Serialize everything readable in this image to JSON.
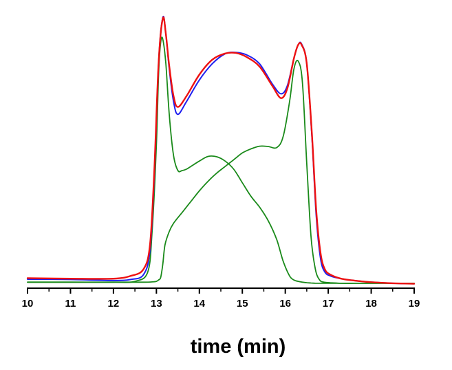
{
  "chart_data": {
    "type": "line",
    "title": "",
    "xlabel": "time (min)",
    "ylabel": "",
    "xlim": [
      10,
      19
    ],
    "ylim": [
      0,
      1
    ],
    "x_ticks": [
      "10",
      "11",
      "12",
      "13",
      "14",
      "15",
      "16",
      "17",
      "18",
      "19"
    ],
    "grid": false,
    "legend": "none",
    "y_axis_visible": false,
    "series": [
      {
        "color": "#1f1ff0",
        "x": [
          10.0,
          11.0,
          12.0,
          12.4,
          12.7,
          12.85,
          12.95,
          13.05,
          13.15,
          13.22,
          13.3,
          13.4,
          13.5,
          13.7,
          14.0,
          14.3,
          14.6,
          14.85,
          15.1,
          15.4,
          15.7,
          15.9,
          16.05,
          16.2,
          16.3,
          16.38,
          16.5,
          16.62,
          16.72,
          16.82,
          16.92,
          17.05,
          17.3,
          17.6,
          18.0,
          18.5,
          19.0
        ],
        "y": [
          0.023,
          0.022,
          0.018,
          0.022,
          0.04,
          0.13,
          0.4,
          0.82,
          0.991,
          0.93,
          0.8,
          0.68,
          0.633,
          0.68,
          0.76,
          0.82,
          0.857,
          0.862,
          0.853,
          0.82,
          0.745,
          0.709,
          0.74,
          0.84,
          0.89,
          0.893,
          0.82,
          0.55,
          0.26,
          0.1,
          0.05,
          0.035,
          0.025,
          0.018,
          0.012,
          0.008,
          0.006
        ]
      },
      {
        "color": "#ee1111",
        "x": [
          10.0,
          11.0,
          12.0,
          12.4,
          12.7,
          12.85,
          12.95,
          13.05,
          13.15,
          13.22,
          13.3,
          13.4,
          13.5,
          13.7,
          14.0,
          14.3,
          14.6,
          14.85,
          15.1,
          15.4,
          15.7,
          15.9,
          16.05,
          16.2,
          16.3,
          16.38,
          16.5,
          16.62,
          16.72,
          16.82,
          16.92,
          17.05,
          17.3,
          17.6,
          18.0,
          18.5,
          19.0
        ],
        "y": [
          0.027,
          0.025,
          0.025,
          0.035,
          0.06,
          0.15,
          0.42,
          0.82,
          0.988,
          0.93,
          0.81,
          0.7,
          0.66,
          0.7,
          0.78,
          0.835,
          0.858,
          0.86,
          0.845,
          0.81,
          0.738,
          0.693,
          0.73,
          0.84,
          0.89,
          0.89,
          0.82,
          0.56,
          0.28,
          0.12,
          0.06,
          0.04,
          0.025,
          0.018,
          0.012,
          0.008,
          0.006
        ]
      },
      {
        "color": "#1a8a1a",
        "x": [
          10.0,
          11.0,
          12.0,
          12.5,
          12.8,
          12.9,
          13.0,
          13.05,
          13.1,
          13.15,
          13.22,
          13.3,
          13.4,
          13.5,
          13.6,
          13.7,
          13.8,
          14.0,
          14.2,
          14.4,
          14.6,
          14.8,
          15.0,
          15.2,
          15.4,
          15.6,
          15.8,
          15.95,
          16.1,
          16.2,
          16.3,
          16.4,
          16.5,
          16.6,
          16.7,
          16.8,
          16.9,
          17.05,
          17.3,
          17.6,
          18.0,
          18.5,
          19.0
        ],
        "y": [
          0.012,
          0.012,
          0.012,
          0.015,
          0.05,
          0.2,
          0.52,
          0.78,
          0.9,
          0.91,
          0.82,
          0.63,
          0.48,
          0.425,
          0.425,
          0.43,
          0.44,
          0.46,
          0.477,
          0.476,
          0.46,
          0.43,
          0.38,
          0.33,
          0.29,
          0.24,
          0.17,
          0.09,
          0.035,
          0.02,
          0.015,
          0.012,
          0.01,
          0.009,
          0.008,
          0.008,
          0.008,
          0.008,
          0.008,
          0.008,
          0.008,
          0.008,
          0.008
        ]
      },
      {
        "color": "#1a8a1a",
        "x": [
          10.0,
          11.0,
          12.0,
          12.7,
          12.9,
          13.0,
          13.05,
          13.1,
          13.15,
          13.2,
          13.3,
          13.4,
          13.6,
          13.8,
          14.0,
          14.2,
          14.4,
          14.6,
          14.8,
          15.0,
          15.2,
          15.4,
          15.6,
          15.8,
          15.95,
          16.1,
          16.2,
          16.3,
          16.4,
          16.5,
          16.6,
          16.7,
          16.8,
          16.9,
          17.05,
          17.3,
          17.6,
          18.0,
          18.5,
          19.0
        ],
        "y": [
          0.012,
          0.012,
          0.012,
          0.012,
          0.013,
          0.015,
          0.02,
          0.03,
          0.08,
          0.15,
          0.2,
          0.23,
          0.27,
          0.31,
          0.35,
          0.385,
          0.415,
          0.44,
          0.465,
          0.49,
          0.505,
          0.515,
          0.514,
          0.51,
          0.55,
          0.68,
          0.8,
          0.83,
          0.75,
          0.45,
          0.18,
          0.06,
          0.02,
          0.012,
          0.01,
          0.008,
          0.008,
          0.008,
          0.008,
          0.008
        ]
      }
    ]
  }
}
